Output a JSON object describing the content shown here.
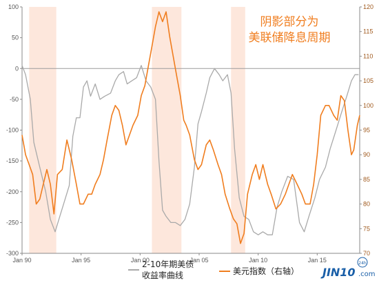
{
  "chart_data": {
    "type": "line",
    "annotation": [
      "阴影部分为",
      "美联储降息周期"
    ],
    "x_range": [
      1990.0,
      2018.6
    ],
    "x_ticks": [
      {
        "value": 1990,
        "label": "Jan 90"
      },
      {
        "value": 1995,
        "label": "Jan 95"
      },
      {
        "value": 2000,
        "label": "Jan 00"
      },
      {
        "value": 2005,
        "label": "Jan 05"
      },
      {
        "value": 2010,
        "label": "Jan 10"
      },
      {
        "value": 2015,
        "label": "Jan 15"
      }
    ],
    "y_left": {
      "range": [
        -300,
        100
      ],
      "ticks": [
        100,
        50,
        0,
        -50,
        -100,
        -150,
        -200,
        -250,
        -300
      ]
    },
    "y_right": {
      "range": [
        70,
        120
      ],
      "ticks": [
        120,
        115,
        110,
        105,
        100,
        95,
        90,
        85,
        80,
        75,
        70
      ]
    },
    "zero_line": 0,
    "shaded_periods": [
      [
        1990.6,
        1992.9
      ],
      [
        2001.0,
        2003.5
      ],
      [
        2007.7,
        2008.9
      ]
    ],
    "series": [
      {
        "name": "2-10年期美债收益率曲线",
        "axis": "left",
        "color": "#a9a9a9",
        "points": [
          [
            1990.0,
            5
          ],
          [
            1990.3,
            -10
          ],
          [
            1990.7,
            -50
          ],
          [
            1991.0,
            -120
          ],
          [
            1991.5,
            -160
          ],
          [
            1992.0,
            -200
          ],
          [
            1992.4,
            -245
          ],
          [
            1992.8,
            -265
          ],
          [
            1993.2,
            -240
          ],
          [
            1993.6,
            -215
          ],
          [
            1994.0,
            -190
          ],
          [
            1994.3,
            -110
          ],
          [
            1994.6,
            -80
          ],
          [
            1994.9,
            -80
          ],
          [
            1995.2,
            -30
          ],
          [
            1995.5,
            -20
          ],
          [
            1995.8,
            -45
          ],
          [
            1996.2,
            -25
          ],
          [
            1996.6,
            -50
          ],
          [
            1997.0,
            -45
          ],
          [
            1997.5,
            -40
          ],
          [
            1997.9,
            -20
          ],
          [
            1998.2,
            -10
          ],
          [
            1998.6,
            -5
          ],
          [
            1998.9,
            -25
          ],
          [
            1999.3,
            -20
          ],
          [
            1999.7,
            -15
          ],
          [
            2000.1,
            5
          ],
          [
            2000.5,
            -20
          ],
          [
            2000.9,
            -30
          ],
          [
            2001.3,
            -50
          ],
          [
            2001.6,
            -150
          ],
          [
            2001.9,
            -230
          ],
          [
            2002.2,
            -240
          ],
          [
            2002.6,
            -250
          ],
          [
            2003.0,
            -250
          ],
          [
            2003.4,
            -255
          ],
          [
            2003.8,
            -245
          ],
          [
            2004.2,
            -220
          ],
          [
            2004.6,
            -160
          ],
          [
            2004.9,
            -90
          ],
          [
            2005.2,
            -70
          ],
          [
            2005.6,
            -40
          ],
          [
            2005.9,
            -15
          ],
          [
            2006.3,
            0
          ],
          [
            2006.7,
            -10
          ],
          [
            2007.0,
            -20
          ],
          [
            2007.4,
            -10
          ],
          [
            2007.7,
            -40
          ],
          [
            2008.0,
            -130
          ],
          [
            2008.4,
            -210
          ],
          [
            2008.8,
            -240
          ],
          [
            2009.2,
            -245
          ],
          [
            2009.6,
            -265
          ],
          [
            2010.0,
            -270
          ],
          [
            2010.4,
            -265
          ],
          [
            2010.8,
            -270
          ],
          [
            2011.2,
            -270
          ],
          [
            2011.6,
            -225
          ],
          [
            2012.0,
            -200
          ],
          [
            2012.5,
            -175
          ],
          [
            2013.0,
            -180
          ],
          [
            2013.5,
            -250
          ],
          [
            2013.9,
            -265
          ],
          [
            2014.3,
            -240
          ],
          [
            2014.8,
            -210
          ],
          [
            2015.2,
            -180
          ],
          [
            2015.7,
            -160
          ],
          [
            2016.1,
            -130
          ],
          [
            2016.6,
            -100
          ],
          [
            2017.0,
            -75
          ],
          [
            2017.5,
            -45
          ],
          [
            2017.9,
            -20
          ],
          [
            2018.2,
            -10
          ],
          [
            2018.5,
            -10
          ]
        ]
      },
      {
        "name": "美元指数（右轴）",
        "axis": "right",
        "color": "#f07d1e",
        "points": [
          [
            1990.0,
            94
          ],
          [
            1990.3,
            90
          ],
          [
            1990.6,
            88
          ],
          [
            1990.9,
            86
          ],
          [
            1991.2,
            80
          ],
          [
            1991.5,
            81
          ],
          [
            1991.8,
            84
          ],
          [
            1992.1,
            87
          ],
          [
            1992.4,
            84
          ],
          [
            1992.7,
            78
          ],
          [
            1993.0,
            86
          ],
          [
            1993.4,
            87
          ],
          [
            1993.8,
            93
          ],
          [
            1994.2,
            89
          ],
          [
            1994.6,
            84
          ],
          [
            1994.9,
            80
          ],
          [
            1995.2,
            80
          ],
          [
            1995.6,
            82
          ],
          [
            1995.9,
            82
          ],
          [
            1996.2,
            84
          ],
          [
            1996.6,
            86
          ],
          [
            1996.9,
            89
          ],
          [
            1997.2,
            93
          ],
          [
            1997.6,
            98
          ],
          [
            1997.9,
            100
          ],
          [
            1998.2,
            99
          ],
          [
            1998.5,
            96
          ],
          [
            1998.8,
            92
          ],
          [
            1999.1,
            94
          ],
          [
            1999.4,
            96
          ],
          [
            1999.8,
            98
          ],
          [
            2000.1,
            102
          ],
          [
            2000.4,
            104
          ],
          [
            2000.7,
            108
          ],
          [
            2001.0,
            112
          ],
          [
            2001.3,
            116
          ],
          [
            2001.6,
            119
          ],
          [
            2001.9,
            117
          ],
          [
            2002.2,
            119
          ],
          [
            2002.5,
            114
          ],
          [
            2002.8,
            110
          ],
          [
            2003.1,
            106
          ],
          [
            2003.4,
            102
          ],
          [
            2003.7,
            97
          ],
          [
            2003.9,
            96
          ],
          [
            2004.2,
            94
          ],
          [
            2004.6,
            89
          ],
          [
            2004.9,
            87
          ],
          [
            2005.2,
            88
          ],
          [
            2005.6,
            92
          ],
          [
            2005.9,
            93
          ],
          [
            2006.2,
            91
          ],
          [
            2006.6,
            88
          ],
          [
            2006.9,
            86
          ],
          [
            2007.2,
            82
          ],
          [
            2007.6,
            79
          ],
          [
            2007.9,
            77
          ],
          [
            2008.2,
            76
          ],
          [
            2008.5,
            72
          ],
          [
            2008.8,
            74
          ],
          [
            2009.1,
            82
          ],
          [
            2009.5,
            86
          ],
          [
            2009.8,
            88
          ],
          [
            2010.1,
            85
          ],
          [
            2010.4,
            88
          ],
          [
            2010.8,
            84
          ],
          [
            2011.1,
            82
          ],
          [
            2011.5,
            79
          ],
          [
            2011.9,
            80
          ],
          [
            2012.3,
            82
          ],
          [
            2012.6,
            84
          ],
          [
            2012.9,
            86
          ],
          [
            2013.3,
            84
          ],
          [
            2013.7,
            82
          ],
          [
            2014.0,
            80
          ],
          [
            2014.4,
            80
          ],
          [
            2014.7,
            84
          ],
          [
            2015.0,
            90
          ],
          [
            2015.3,
            98
          ],
          [
            2015.7,
            100
          ],
          [
            2016.0,
            100
          ],
          [
            2016.4,
            98
          ],
          [
            2016.7,
            97
          ],
          [
            2017.0,
            102
          ],
          [
            2017.3,
            101
          ],
          [
            2017.6,
            95
          ],
          [
            2017.9,
            90
          ],
          [
            2018.1,
            91
          ],
          [
            2018.4,
            96
          ],
          [
            2018.6,
            98
          ]
        ]
      }
    ],
    "legend": {
      "items": [
        {
          "label_lines": [
            "2-10年期美债",
            "收益率曲线"
          ],
          "color": "#a9a9a9"
        },
        {
          "label_lines": [
            "美元指数（右轴）"
          ],
          "color": "#f07d1e"
        }
      ]
    }
  },
  "watermark": {
    "text_main": "JIN10",
    "text_suffix": ".com",
    "badge": "24h"
  },
  "colors": {
    "shade": "#fde7dc",
    "axis": "#8a8a8a",
    "zero_line": "#9b9b9b"
  }
}
